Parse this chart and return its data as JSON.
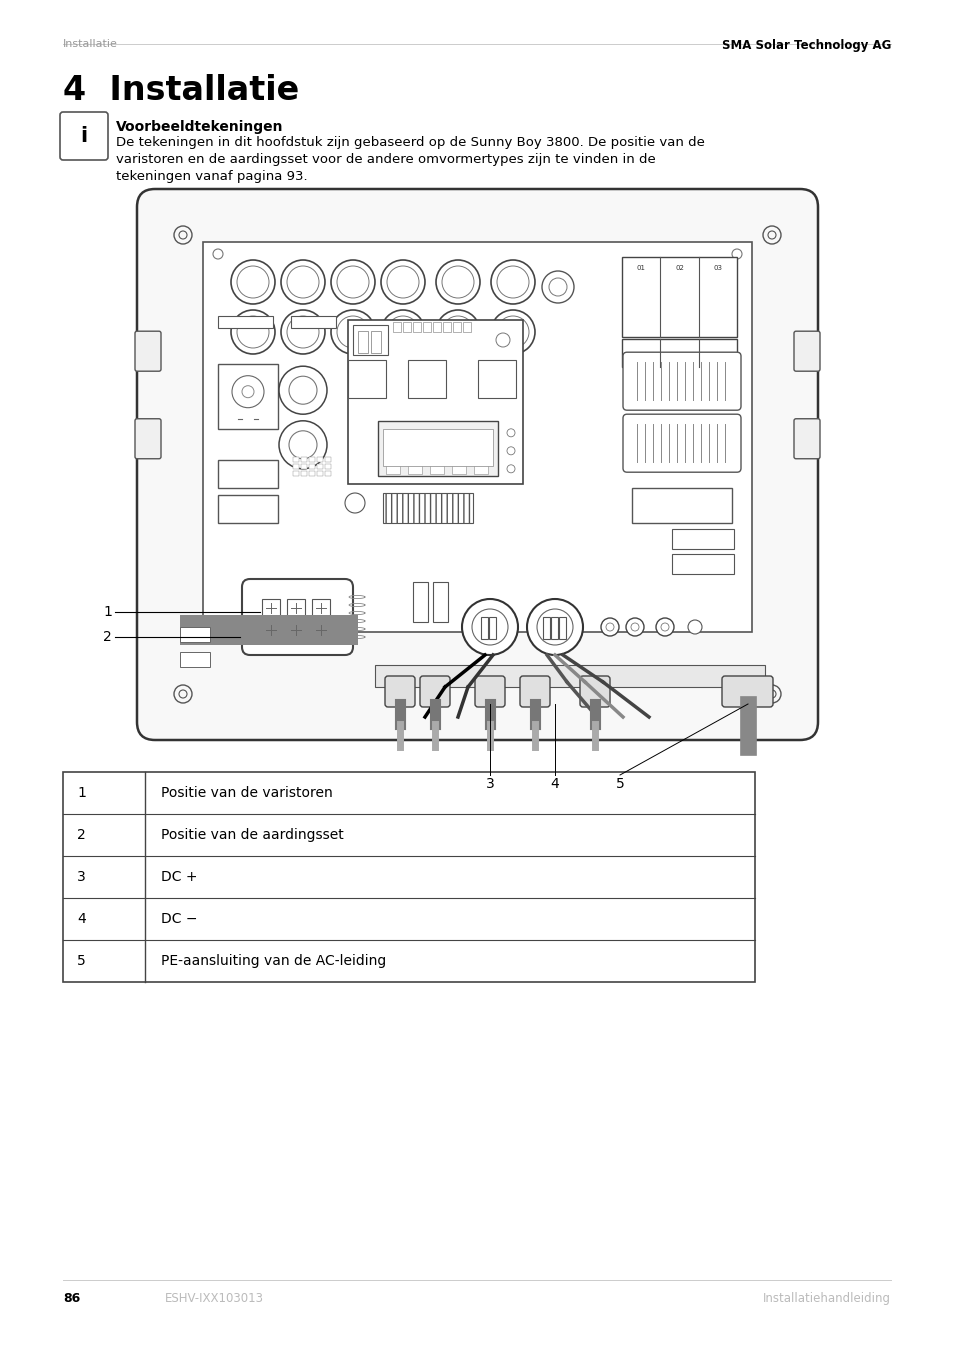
{
  "page_bg": "#ffffff",
  "header_left": "Installatie",
  "header_right": "SMA Solar Technology AG",
  "header_left_color": "#999999",
  "header_right_color": "#000000",
  "chapter_title": "4  Installatie",
  "info_title": "Voorbeeldtekeningen",
  "info_text_lines": [
    "De tekeningen in dit hoofdstuk zijn gebaseerd op de Sunny Boy 3800. De positie van de",
    "varistoren en de aardingsset voor de andere omvormertypes zijn te vinden in de",
    "tekeningen vanaf pagina 93."
  ],
  "footer_left_num": "86",
  "footer_left_code": "ESHV-IXX103013",
  "footer_right": "Installatiehandleiding",
  "table_rows": [
    [
      "1",
      "Positie van de varistoren"
    ],
    [
      "2",
      "Positie van de aardingsset"
    ],
    [
      "3",
      "DC +"
    ],
    [
      "4",
      "DC −"
    ],
    [
      "5",
      "PE-aansluiting van de AC-leiding"
    ]
  ]
}
